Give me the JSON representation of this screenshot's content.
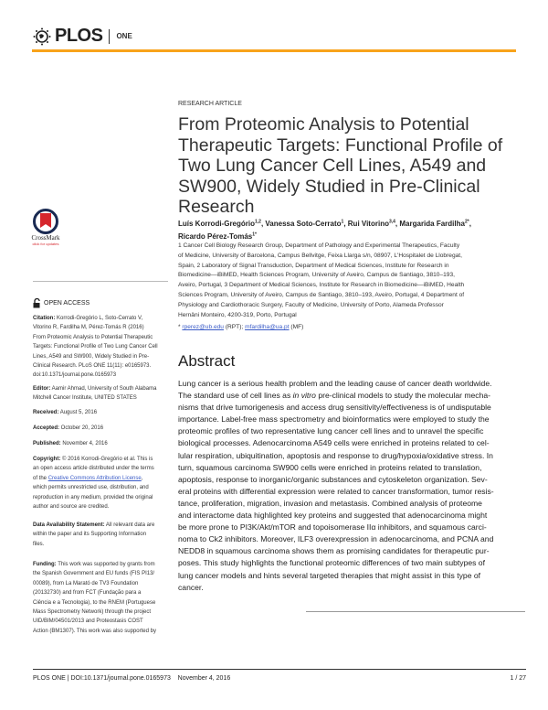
{
  "header": {
    "logo_text": "PLOS",
    "journal": "ONE",
    "accent_color": "#f8a31b"
  },
  "article_type": "RESEARCH ARTICLE",
  "title_lines": [
    "From Proteomic Analysis to Potential",
    "Therapeutic Targets: Functional Profile of",
    "Two Lung Cancer Cell Lines, A549 and",
    "SW900, Widely Studied in Pre-Clinical",
    "Research"
  ],
  "authors": [
    {
      "name": "Luís Korrodi-Gregório",
      "sup": "1,2"
    },
    {
      "name": "Vanessa Soto-Cerrato",
      "sup": "1"
    },
    {
      "name": "Rui Vitorino",
      "sup": "3,4"
    },
    {
      "name": "Margarida Fardilha",
      "sup": "2*"
    },
    {
      "name": "Ricardo Pérez-Tomás",
      "sup": "1*"
    }
  ],
  "affiliation_lines": [
    "1  Cancer Cell Biology Research Group, Department of Pathology and Experimental Therapeutics, Faculty",
    "of Medicine, University of Barcelona, Campus Bellvitge, Feixa Llarga s/n, 08907, L'Hospitalet de Llobregat,",
    "Spain, 2  Laboratory of Signal Transduction, Department of Medical Sciences, Institute for Research in",
    "Biomedicine—iBiMED, Health Sciences Program, University of Aveiro, Campus de Santiago, 3810–193,",
    "Aveiro, Portugal, 3  Department of Medical Sciences, Institute for Research in Biomedicine—iBiMED, Health",
    "Sciences Program, University of Aveiro, Campus de Santiago, 3810–193, Aveiro, Portugal, 4  Department of",
    "Physiology and Cardiothoracic Surgery, Faculty of Medicine, University of Porto, Alameda Professor",
    "Hernâni Monteiro, 4200-319, Porto, Portugal"
  ],
  "correspondence": {
    "email1": "rperez@ub.edu",
    "label1": "(RPT);",
    "email2": "mfardilha@ua.pt",
    "label2": "(MF)"
  },
  "abstract": {
    "heading": "Abstract",
    "lines": [
      "Lung cancer is a serious health problem and the leading cause of cancer death worldwide.",
      "",
      "nisms that drive tumorigenesis and access drug sensitivity/effectiveness is of undisputable",
      "importance. Label-free mass spectrometry and bioinformatics were employed to study the",
      "proteomic profiles of two representative lung cancer cell lines and to unravel the specific",
      "biological processes. Adenocarcinoma A549 cells were enriched in proteins related to cel-",
      "lular respiration, ubiquitination, apoptosis and response to drug/hypoxia/oxidative stress. In",
      "turn, squamous carcinoma SW900 cells were enriched in proteins related to translation,",
      "apoptosis, response to inorganic/organic substances and cytoskeleton organization. Sev-",
      "eral proteins with differential expression were related to cancer transformation, tumor resis-",
      "tance, proliferation, migration, invasion and metastasis. Combined analysis of proteome",
      "and interactome data highlighted key proteins and suggested that adenocarcinoma might",
      "be more prone to PI3K/Akt/mTOR and topoisomerase IIα inhibitors, and squamous carci-",
      "noma to Ck2 inhibitors. Moreover, ILF3 overexpression in adenocarcinoma, and PCNA and",
      "NEDD8 in squamous carcinoma shows them as promising candidates for therapeutic pur-",
      "poses. This study highlights the functional proteomic differences of two main subtypes of",
      "lung cancer models and hints several targeted therapies that might assist in this type of",
      "cancer."
    ],
    "line2_pre": "The standard use of cell lines as ",
    "line2_italic": "in vitro",
    "line2_post": " pre-clinical models to study the molecular mecha-"
  },
  "crossmark": {
    "label": "CrossMark",
    "sub": "click for updates"
  },
  "open_access": "OPEN ACCESS",
  "sidebar": {
    "citation_label": "Citation:",
    "citation_lines": [
      " Korrodi-Gregório L, Soto-Cerrato V,",
      "Vitorino R, Fardilha M, Pérez-Tomás R (2016)",
      "From Proteomic Analysis to Potential Therapeutic",
      "Targets: Functional Profile of Two Lung Cancer Cell",
      "Lines, A549 and SW900, Widely Studied in Pre-",
      "Clinical Research. PLoS ONE 11(11): e0165973.",
      "doi:10.1371/journal.pone.0165973"
    ],
    "editor_label": "Editor:",
    "editor_lines": [
      " Aamir Ahmad, University of South Alabama",
      "Mitchell Cancer Institute, UNITED STATES"
    ],
    "received_label": "Received:",
    "received": " August 5, 2016",
    "accepted_label": "Accepted:",
    "accepted": " October 20, 2016",
    "published_label": "Published:",
    "published": " November 4, 2016",
    "copyright_label": "Copyright:",
    "copyright_l1": " © 2016 Korrodi-Gregório et al. This is",
    "copyright_l2": "an open access article distributed under the terms",
    "copyright_l3_pre": "of the ",
    "copyright_link": "Creative Commons Attribution License",
    "copyright_l3_post": ",",
    "copyright_rest": [
      "which permits unrestricted use, distribution, and",
      "reproduction in any medium, provided the original",
      "author and source are credited."
    ],
    "data_label": "Data Availability Statement:",
    "data_lines": [
      " All relevant data are",
      "within the paper and its Supporting Information",
      "files."
    ],
    "funding_label": "Funding:",
    "funding_lines": [
      " This work was supported by grants from",
      "the Spanish Government and EU funds (FIS PI13/",
      "00089), from La Marató de TV3 Foundation",
      "(20132730) and from FCT (Fundação para a",
      "Ciência e a Tecnologia), to the RNEM (Portuguese",
      "Mass Spectrometry Network) through the project",
      "UID/BIM/04501/2013 and Proteostasis COST",
      "Action (BM1307). This work was also supported by"
    ]
  },
  "footer": {
    "text": "PLOS ONE | DOI:10.1371/journal.pone.0165973    November 4, 2016",
    "page": "1 / 27"
  }
}
